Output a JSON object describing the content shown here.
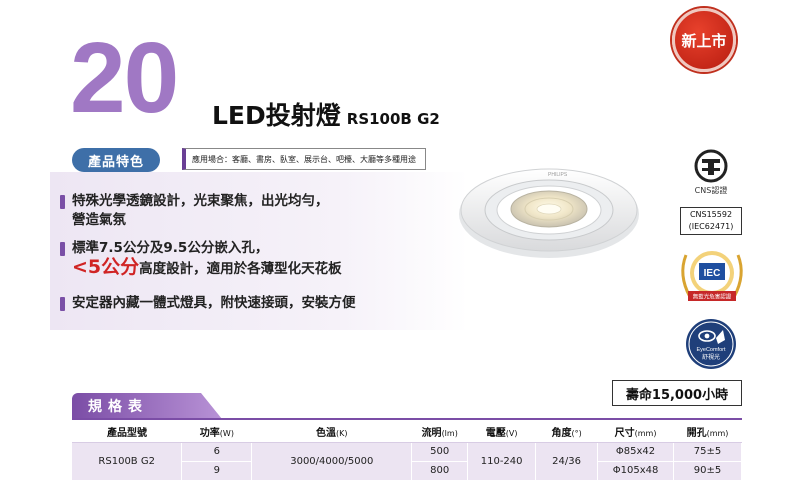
{
  "header": {
    "big_number": "20",
    "product_name": "LED投射燈",
    "model": "RS100B G2",
    "new_badge": "新上市"
  },
  "features": {
    "section_label": "產品特色",
    "applications": "應用場合：客廳、書房、臥室、展示台、吧檯、大廳等多種用途",
    "item1_line1": "特殊光學透鏡設計，光束聚焦，出光均勻，",
    "item1_line2": "營造氣氛",
    "item2_line1": "標準7.5公分及9.5公分嵌入孔，",
    "item2_highlight": "<5公分",
    "item2_line2": "高度設計，適用於各薄型化天花板",
    "item3": "安定器內藏一體式燈具，附快速接頭，安裝方便"
  },
  "certifications": {
    "cns_label": "CNS認證",
    "cns_std1": "CNS15592",
    "cns_std2": "(IEC62471)",
    "iec_text": "IEC",
    "iec_caption": "無藍光危害認證",
    "eye_brand": "EyeComfort",
    "eye_caption": "舒視光"
  },
  "lamp": {
    "brand": "PHILIPS"
  },
  "lifespan": "壽命15,000小時",
  "spec": {
    "tab_label": "規格表",
    "headers": [
      {
        "name": "產品型號",
        "unit": ""
      },
      {
        "name": "功率",
        "unit": "(W)"
      },
      {
        "name": "色溫",
        "unit": "(K)"
      },
      {
        "name": "流明",
        "unit": "(lm)"
      },
      {
        "name": "電壓",
        "unit": "(V)"
      },
      {
        "name": "角度",
        "unit": "(°)"
      },
      {
        "name": "尺寸",
        "unit": "(mm)"
      },
      {
        "name": "開孔",
        "unit": "(mm)"
      }
    ],
    "model": "RS100B G2",
    "color_temp": "3000/4000/5000",
    "voltage": "110-240",
    "angle": "24/36",
    "rows": [
      {
        "power": "6",
        "lumen": "500",
        "size": "Φ85x42",
        "cutout": "75±5"
      },
      {
        "power": "9",
        "lumen": "800",
        "size": "Φ105x48",
        "cutout": "90±5"
      }
    ]
  }
}
